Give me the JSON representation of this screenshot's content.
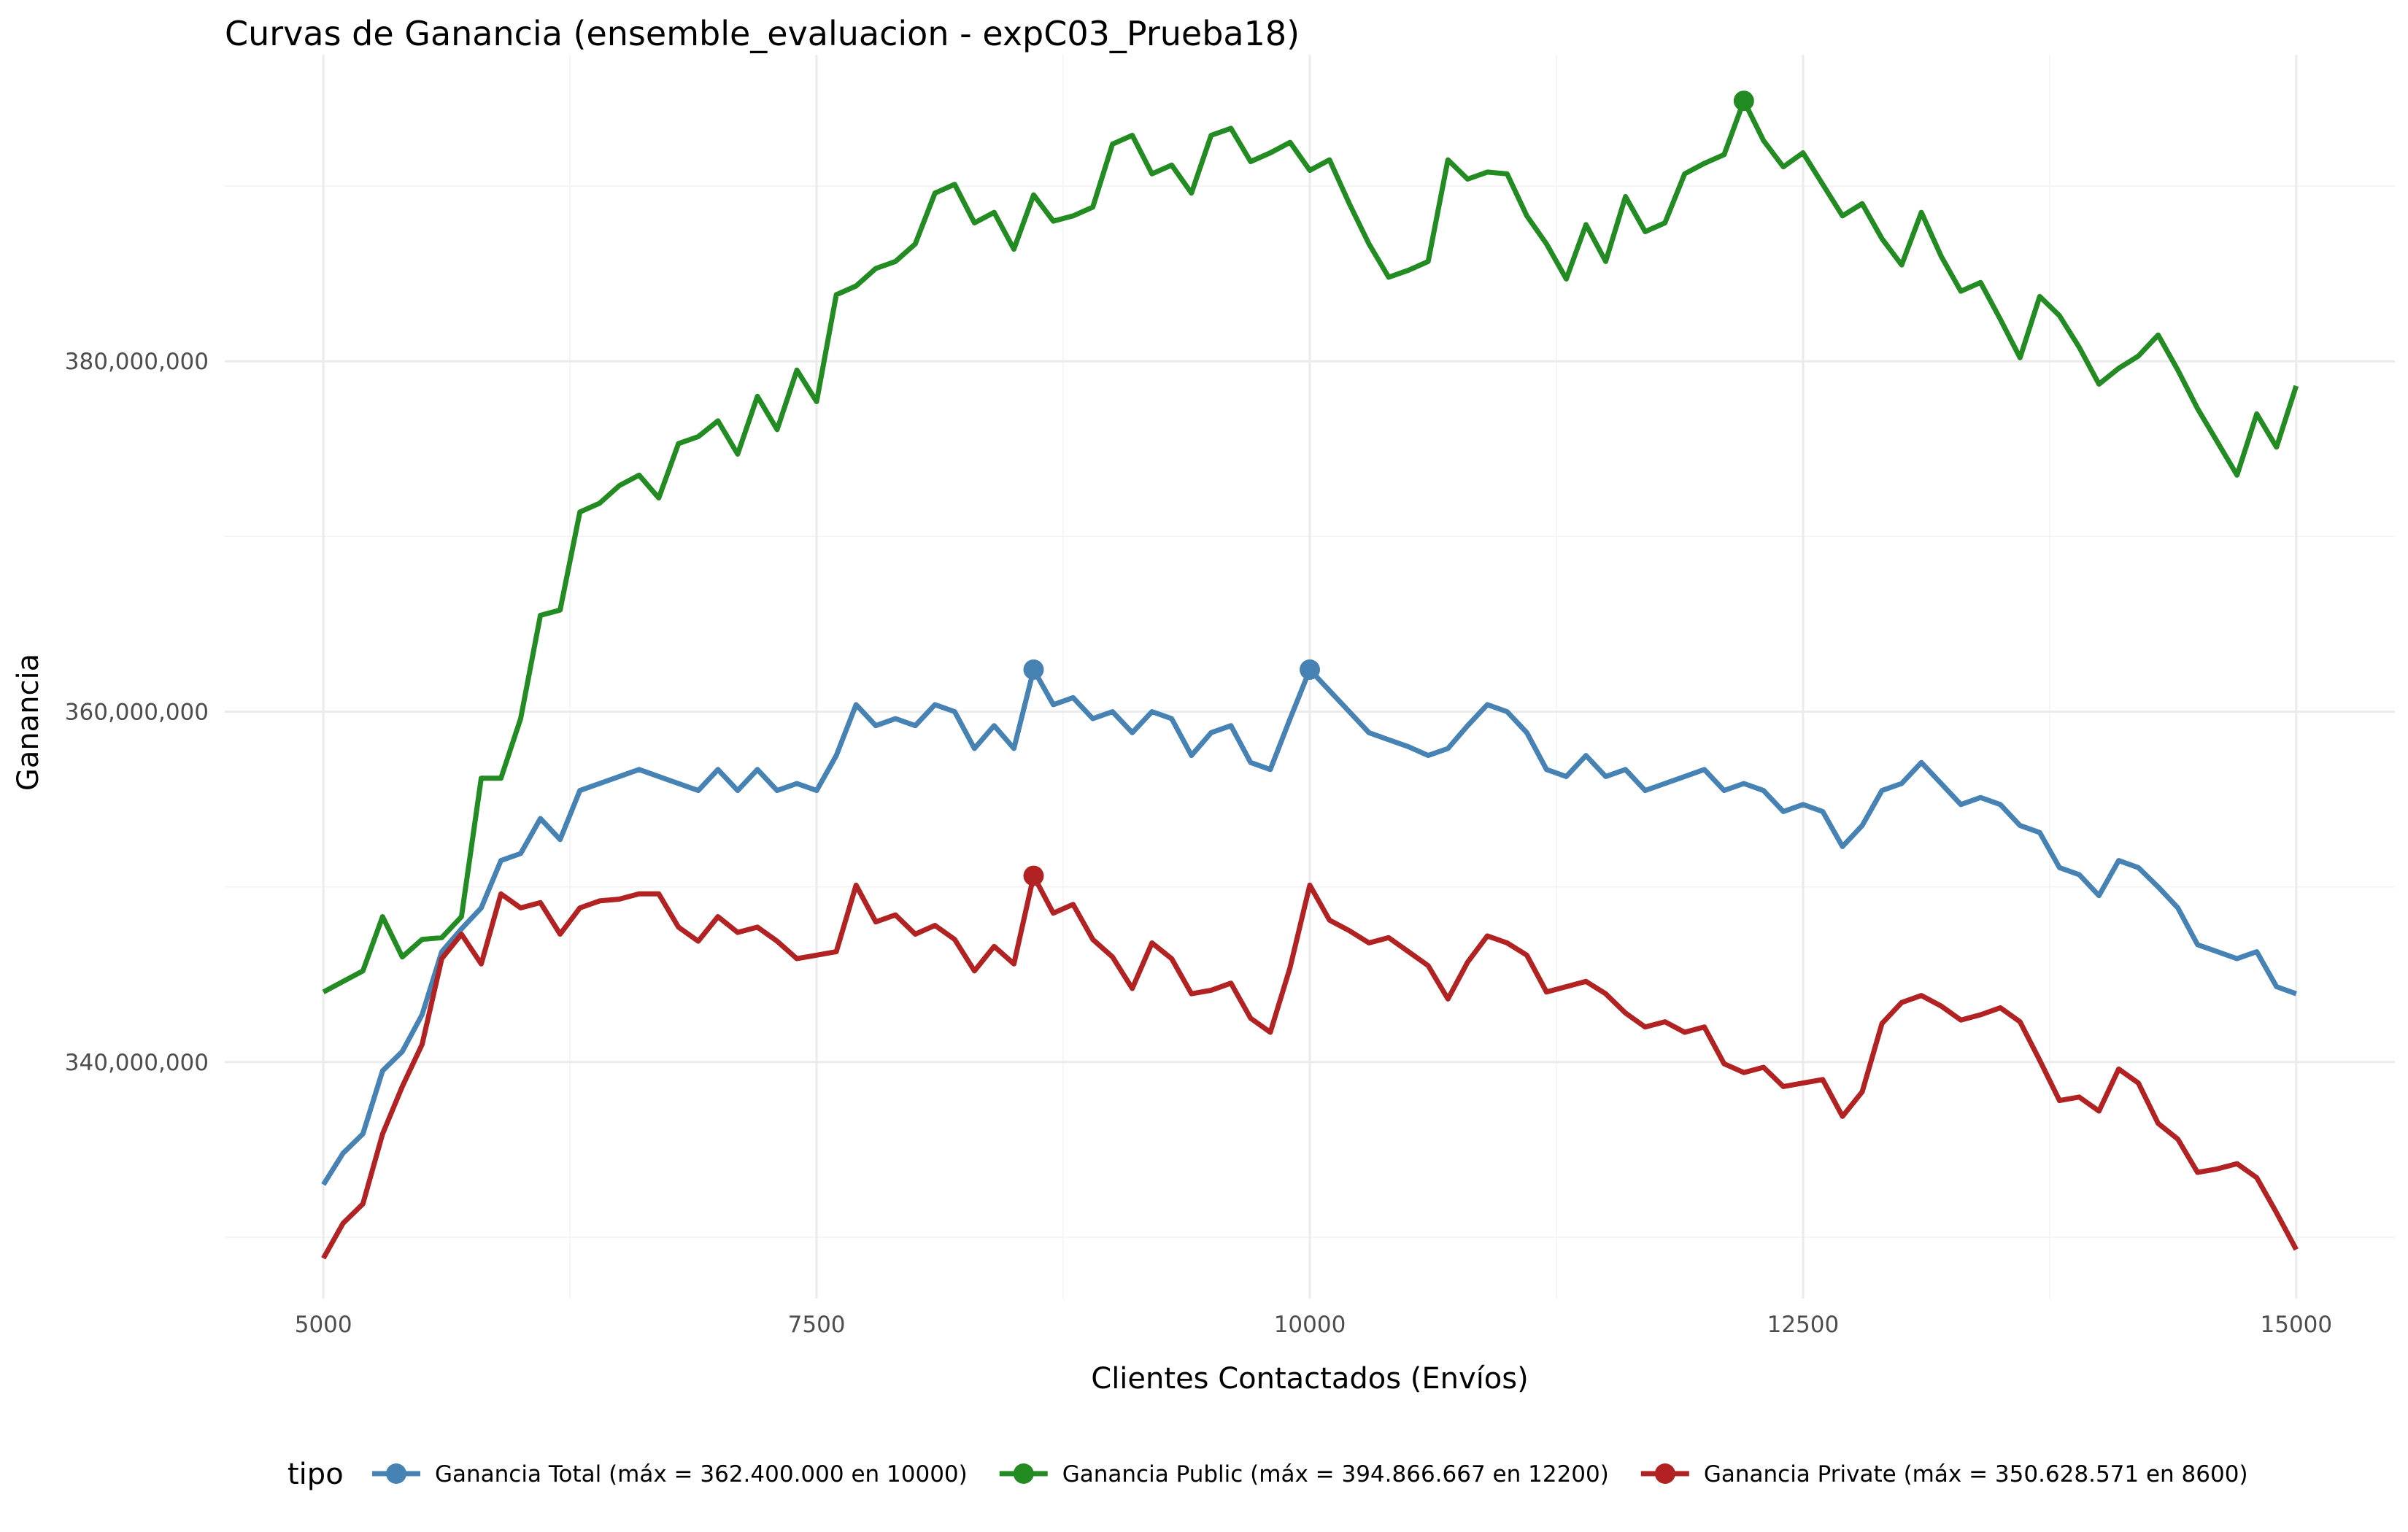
{
  "chart_data": {
    "type": "line",
    "title": "Curvas de Ganancia (ensemble_evaluacion - expC03_Prueba18)",
    "xlabel": "Clientes Contactados (Envíos)",
    "ylabel": "Ganancia",
    "xlim": [
      4500,
      15500
    ],
    "ylim": [
      326500000,
      397500000
    ],
    "x_ticks": [
      5000,
      7500,
      10000,
      12500,
      15000
    ],
    "x_tick_labels": [
      "5000",
      "7500",
      "10000",
      "12500",
      "15000"
    ],
    "y_ticks": [
      340000000,
      360000000,
      380000000
    ],
    "y_tick_labels": [
      "340,000,000",
      "360,000,000",
      "380,000,000"
    ],
    "grid": true,
    "legend": {
      "position": "bottom",
      "title": "tipo"
    },
    "x": [
      5000,
      5100,
      5200,
      5300,
      5400,
      5500,
      5600,
      5700,
      5800,
      5900,
      6000,
      6100,
      6200,
      6300,
      6400,
      6500,
      6600,
      6700,
      6800,
      6900,
      7000,
      7100,
      7200,
      7300,
      7400,
      7500,
      7600,
      7700,
      7800,
      7900,
      8000,
      8100,
      8200,
      8300,
      8400,
      8500,
      8600,
      8700,
      8800,
      8900,
      9000,
      9100,
      9200,
      9300,
      9400,
      9500,
      9600,
      9700,
      9800,
      9900,
      10000,
      10100,
      10200,
      10300,
      10400,
      10500,
      10600,
      10700,
      10800,
      10900,
      11000,
      11100,
      11200,
      11300,
      11400,
      11500,
      11600,
      11700,
      11800,
      11900,
      12000,
      12100,
      12200,
      12300,
      12400,
      12500,
      12600,
      12700,
      12800,
      12900,
      13000,
      13100,
      13200,
      13300,
      13400,
      13500,
      13600,
      13700,
      13800,
      13900,
      14000,
      14100,
      14200,
      14300,
      14400,
      14500,
      14600,
      14700,
      14800,
      14900,
      15000
    ],
    "series": [
      {
        "name": "Ganancia Total (máx = 362.400.000 en 10000)",
        "color": "#4682B4",
        "max_point": {
          "x": 10000,
          "y": 362400000
        },
        "markers": [
          {
            "x": 8600,
            "y": 362400000
          },
          {
            "x": 10000,
            "y": 362400000
          }
        ],
        "values": [
          333000000,
          334800000,
          335900000,
          339500000,
          340600000,
          342700000,
          346300000,
          347600000,
          348800000,
          351500000,
          351900000,
          353900000,
          352700000,
          355500000,
          355900000,
          356300000,
          356700000,
          356300000,
          355900000,
          355500000,
          356700000,
          355500000,
          356700000,
          355500000,
          355900000,
          355500000,
          357500000,
          360400000,
          359200000,
          359600000,
          359200000,
          360400000,
          360000000,
          357900000,
          359200000,
          357900000,
          362400000,
          360400000,
          360800000,
          359600000,
          360000000,
          358800000,
          360000000,
          359600000,
          357500000,
          358800000,
          359200000,
          357100000,
          356700000,
          359600000,
          362400000,
          361200000,
          360000000,
          358800000,
          358400000,
          358000000,
          357500000,
          357900000,
          359200000,
          360400000,
          360000000,
          358800000,
          356700000,
          356300000,
          357500000,
          356300000,
          356700000,
          355500000,
          355900000,
          356300000,
          356700000,
          355500000,
          355900000,
          355500000,
          354300000,
          354700000,
          354300000,
          352300000,
          353500000,
          355500000,
          355900000,
          357100000,
          355900000,
          354700000,
          355100000,
          354700000,
          353500000,
          353100000,
          351100000,
          350700000,
          349500000,
          351500000,
          351100000,
          350000000,
          348800000,
          346700000,
          346300000,
          345900000,
          346300000,
          344300000,
          343900000
        ]
      },
      {
        "name": "Ganancia Public (máx = 394.866.667 en 12200)",
        "color": "#228B22",
        "max_point": {
          "x": 12200,
          "y": 394866667
        },
        "markers": [
          {
            "x": 12200,
            "y": 394866667
          }
        ],
        "values": [
          344000000,
          344600000,
          345200000,
          348300000,
          346000000,
          347000000,
          347100000,
          348300000,
          356200000,
          356200000,
          359600000,
          365500000,
          365800000,
          371400000,
          371900000,
          372900000,
          373500000,
          372200000,
          375300000,
          375700000,
          376600000,
          374700000,
          378000000,
          376100000,
          379500000,
          377700000,
          383800000,
          384300000,
          385300000,
          385700000,
          386700000,
          389600000,
          390100000,
          387900000,
          388500000,
          386400000,
          389500000,
          388000000,
          388300000,
          388800000,
          392400000,
          392900000,
          390700000,
          391200000,
          389600000,
          392900000,
          393300000,
          391400000,
          391900000,
          392500000,
          390900000,
          391500000,
          389000000,
          386700000,
          384800000,
          385200000,
          385700000,
          391500000,
          390400000,
          390800000,
          390700000,
          388300000,
          386700000,
          384700000,
          387800000,
          385700000,
          389400000,
          387400000,
          387900000,
          390700000,
          391300000,
          391800000,
          394866667,
          392600000,
          391100000,
          391900000,
          390100000,
          388300000,
          389000000,
          387000000,
          385500000,
          388500000,
          386000000,
          384000000,
          384500000,
          382400000,
          380200000,
          383700000,
          382600000,
          380800000,
          378700000,
          379600000,
          380300000,
          381500000,
          379500000,
          377300000,
          375400000,
          373500000,
          377000000,
          375100000,
          378600000
        ]
      },
      {
        "name": "Ganancia Private (máx = 350.628.571 en 8600)",
        "color": "#B22222",
        "max_point": {
          "x": 8600,
          "y": 350628571
        },
        "markers": [
          {
            "x": 8600,
            "y": 350628571
          }
        ],
        "values": [
          328800000,
          330800000,
          331900000,
          335900000,
          338600000,
          341000000,
          345900000,
          347300000,
          345600000,
          349600000,
          348800000,
          349100000,
          347300000,
          348800000,
          349200000,
          349300000,
          349600000,
          349600000,
          347700000,
          346900000,
          348300000,
          347400000,
          347700000,
          346900000,
          345900000,
          346100000,
          346300000,
          350100000,
          348000000,
          348400000,
          347300000,
          347800000,
          347000000,
          345200000,
          346600000,
          345600000,
          350628571,
          348500000,
          349000000,
          347000000,
          346000000,
          344200000,
          346800000,
          345900000,
          343900000,
          344100000,
          344500000,
          342500000,
          341700000,
          345400000,
          350100000,
          348100000,
          347500000,
          346800000,
          347100000,
          346300000,
          345500000,
          343600000,
          345700000,
          347200000,
          346800000,
          346100000,
          344000000,
          344300000,
          344600000,
          343900000,
          342800000,
          342000000,
          342300000,
          341700000,
          342000000,
          339900000,
          339400000,
          339700000,
          338600000,
          338800000,
          339000000,
          336900000,
          338300000,
          342200000,
          343400000,
          343800000,
          343200000,
          342400000,
          342700000,
          343100000,
          342300000,
          340100000,
          337800000,
          338000000,
          337200000,
          339600000,
          338800000,
          336500000,
          335600000,
          333700000,
          333900000,
          334200000,
          333400000,
          331400000,
          329300000
        ]
      }
    ]
  }
}
